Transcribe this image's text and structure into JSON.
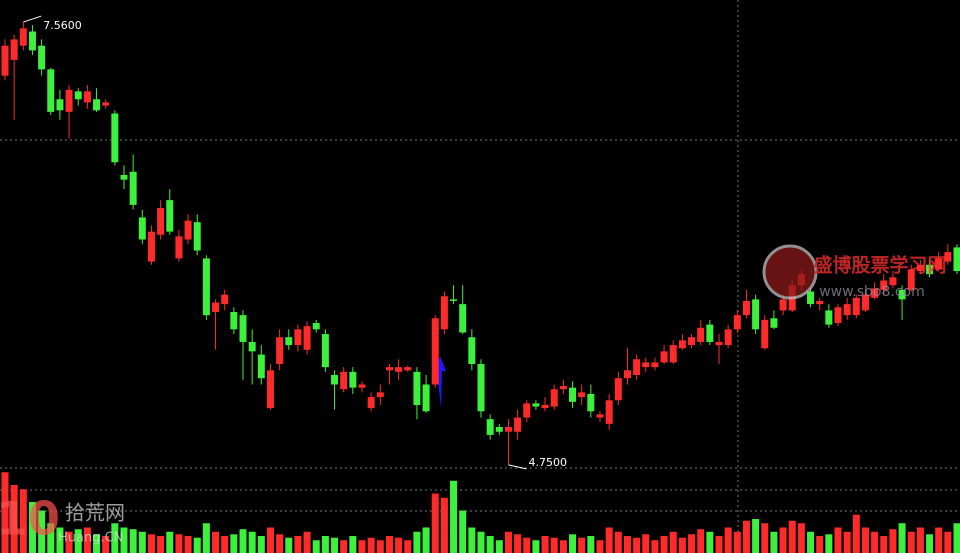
{
  "chart_data": {
    "type": "candlestick",
    "up_color": "#ff2a2a",
    "down_color": "#3cf03c",
    "ylim": [
      4.73,
      7.7
    ],
    "open": [
      7.22,
      7.32,
      7.41,
      7.5,
      7.41,
      7.26,
      7.07,
      6.99,
      7.12,
      7.05,
      7.07,
      7.03,
      6.98,
      6.59,
      6.61,
      6.32,
      6.04,
      6.21,
      6.43,
      6.06,
      6.18,
      6.29,
      6.06,
      5.72,
      5.77,
      5.72,
      5.7,
      5.53,
      5.45,
      5.11,
      5.39,
      5.56,
      5.51,
      5.48,
      5.65,
      5.58,
      5.32,
      5.23,
      5.34,
      5.24,
      5.11,
      5.18,
      5.35,
      5.34,
      5.35,
      5.34,
      5.26,
      5.26,
      5.61,
      5.8,
      5.77,
      5.56,
      5.39,
      5.04,
      4.99,
      4.96,
      4.96,
      5.05,
      5.14,
      5.11,
      5.12,
      5.23,
      5.24,
      5.18,
      5.2,
      5.05,
      5.01,
      5.16,
      5.3,
      5.32,
      5.37,
      5.37,
      5.4,
      5.4,
      5.49,
      5.51,
      5.53,
      5.64,
      5.51,
      5.51,
      5.61,
      5.7,
      5.8,
      5.49,
      5.68,
      5.73,
      5.73,
      5.89,
      5.85,
      5.77,
      5.73,
      5.65,
      5.7,
      5.7,
      5.73,
      5.81,
      5.86,
      5.89,
      5.86,
      5.86,
      5.98,
      6.02,
      5.99,
      6.04,
      6.13
    ],
    "high": [
      7.45,
      7.48,
      7.56,
      7.54,
      7.45,
      7.27,
      7.13,
      7.16,
      7.14,
      7.16,
      7.14,
      7.07,
      7.0,
      6.65,
      6.72,
      6.37,
      6.27,
      6.43,
      6.5,
      6.24,
      6.34,
      6.34,
      6.08,
      5.8,
      5.86,
      5.75,
      5.73,
      5.61,
      5.51,
      5.39,
      5.61,
      5.61,
      5.64,
      5.66,
      5.67,
      5.61,
      5.35,
      5.37,
      5.37,
      5.28,
      5.21,
      5.26,
      5.39,
      5.42,
      5.38,
      5.37,
      5.32,
      5.7,
      5.85,
      5.89,
      5.89,
      5.61,
      5.42,
      5.07,
      5.01,
      5.04,
      5.1,
      5.16,
      5.16,
      5.18,
      5.26,
      5.29,
      5.28,
      5.26,
      5.26,
      5.09,
      5.2,
      5.34,
      5.49,
      5.45,
      5.43,
      5.43,
      5.51,
      5.54,
      5.58,
      5.58,
      5.67,
      5.67,
      5.58,
      5.64,
      5.73,
      5.86,
      5.83,
      5.7,
      5.73,
      5.83,
      5.92,
      5.99,
      5.87,
      5.81,
      5.77,
      5.77,
      5.81,
      5.83,
      5.86,
      5.91,
      5.96,
      5.98,
      5.89,
      6.02,
      6.05,
      6.05,
      6.1,
      6.15,
      6.15
    ],
    "low": [
      7.19,
      6.94,
      7.38,
      7.35,
      7.22,
      6.97,
      6.94,
      6.82,
      7.03,
      7.01,
      6.99,
      7.01,
      6.65,
      6.5,
      6.37,
      6.15,
      6.02,
      6.18,
      6.21,
      6.04,
      6.15,
      6.08,
      5.67,
      5.48,
      5.73,
      5.58,
      5.29,
      5.26,
      5.26,
      5.1,
      5.35,
      5.48,
      5.47,
      5.45,
      5.59,
      5.34,
      5.1,
      5.21,
      5.2,
      5.21,
      5.09,
      5.13,
      5.26,
      5.29,
      5.34,
      5.04,
      5.08,
      5.24,
      5.58,
      5.77,
      5.58,
      5.35,
      5.05,
      4.91,
      4.94,
      4.75,
      4.91,
      5.02,
      5.1,
      5.09,
      5.1,
      5.2,
      5.11,
      5.13,
      5.05,
      5.02,
      4.97,
      5.13,
      5.26,
      5.29,
      5.34,
      5.35,
      5.39,
      5.39,
      5.48,
      5.49,
      5.51,
      5.51,
      5.39,
      5.49,
      5.59,
      5.68,
      5.58,
      5.48,
      5.61,
      5.7,
      5.72,
      5.86,
      5.75,
      5.73,
      5.62,
      5.63,
      5.67,
      5.68,
      5.72,
      5.8,
      5.83,
      5.87,
      5.67,
      5.85,
      5.96,
      5.94,
      5.98,
      6.02,
      5.96
    ],
    "close": [
      7.41,
      7.45,
      7.52,
      7.38,
      7.26,
      6.99,
      7.0,
      7.13,
      7.07,
      7.12,
      7.0,
      7.05,
      6.67,
      6.56,
      6.4,
      6.18,
      6.23,
      6.38,
      6.23,
      6.2,
      6.3,
      6.11,
      5.7,
      5.78,
      5.83,
      5.61,
      5.53,
      5.47,
      5.3,
      5.35,
      5.56,
      5.51,
      5.61,
      5.63,
      5.61,
      5.37,
      5.26,
      5.34,
      5.24,
      5.26,
      5.18,
      5.21,
      5.37,
      5.37,
      5.37,
      5.13,
      5.09,
      5.68,
      5.82,
      5.79,
      5.59,
      5.39,
      5.09,
      4.94,
      4.96,
      4.99,
      5.05,
      5.14,
      5.12,
      5.13,
      5.23,
      5.25,
      5.15,
      5.21,
      5.09,
      5.07,
      5.16,
      5.3,
      5.35,
      5.42,
      5.4,
      5.4,
      5.47,
      5.51,
      5.54,
      5.56,
      5.62,
      5.53,
      5.53,
      5.61,
      5.7,
      5.79,
      5.61,
      5.67,
      5.62,
      5.8,
      5.89,
      5.96,
      5.77,
      5.79,
      5.64,
      5.75,
      5.77,
      5.81,
      5.83,
      5.87,
      5.92,
      5.94,
      5.8,
      5.99,
      6.02,
      5.96,
      6.06,
      6.1,
      5.98
    ],
    "volume": {
      "ylim": [
        0,
        100
      ],
      "values": [
        95,
        80,
        75,
        60,
        50,
        35,
        30,
        25,
        28,
        30,
        22,
        20,
        35,
        30,
        28,
        25,
        22,
        20,
        25,
        22,
        20,
        18,
        35,
        25,
        20,
        22,
        28,
        25,
        20,
        30,
        22,
        18,
        20,
        25,
        15,
        20,
        18,
        15,
        20,
        15,
        18,
        15,
        20,
        18,
        15,
        25,
        30,
        70,
        65,
        85,
        50,
        30,
        25,
        20,
        15,
        25,
        22,
        18,
        15,
        20,
        18,
        15,
        22,
        18,
        20,
        15,
        30,
        25,
        20,
        18,
        22,
        15,
        20,
        25,
        18,
        22,
        28,
        25,
        20,
        30,
        25,
        38,
        40,
        35,
        25,
        30,
        38,
        35,
        25,
        20,
        22,
        30,
        25,
        45,
        30,
        25,
        20,
        28,
        35,
        25,
        30,
        22,
        30,
        25,
        35
      ]
    },
    "annotations": [
      {
        "value": 7.56,
        "label": "7.5600",
        "at": "high"
      },
      {
        "value": 4.75,
        "label": "4.7500",
        "at": "low"
      }
    ],
    "watermarks": [
      "盛博股票学习网",
      "www.sbo8.com",
      "拾荒网",
      "Huang.CN",
      "10"
    ]
  }
}
